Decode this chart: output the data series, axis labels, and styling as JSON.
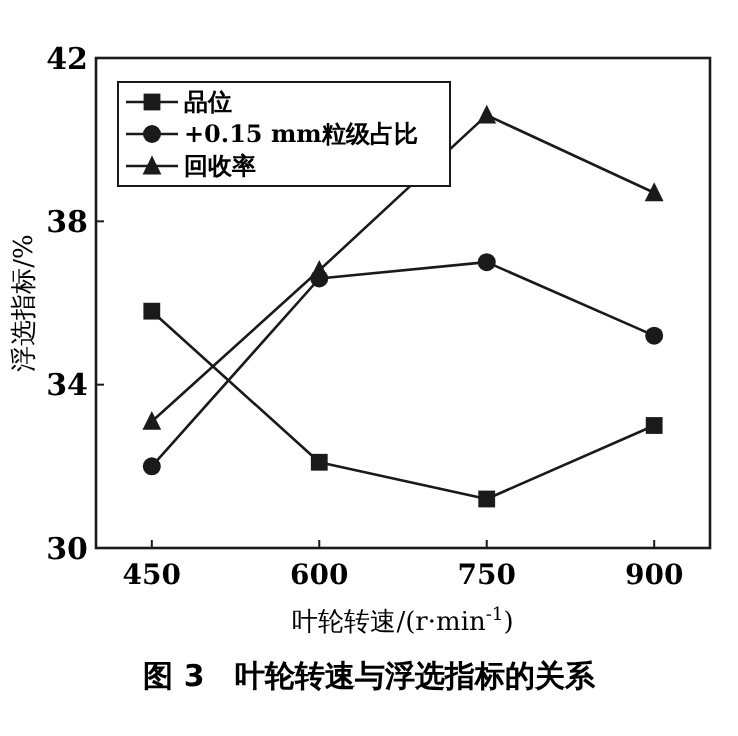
{
  "chart_data": {
    "type": "line",
    "title": "图 3　叶轮转速与浮选指标的关系",
    "xlabel": "叶轮转速/(r·min$^{-1}$)",
    "ylabel": "浮选指标/%",
    "x": [
      450,
      600,
      750,
      900
    ],
    "xlim": [
      400,
      950
    ],
    "xticks": [
      450,
      600,
      750,
      900
    ],
    "ylim": [
      30,
      42
    ],
    "yticks": [
      30,
      34,
      38,
      42
    ],
    "legend": "top left",
    "grid": false,
    "series": [
      {
        "name": "品位",
        "color": "#1a1a1a",
        "marker": "square",
        "values": [
          35.8,
          32.1,
          31.2,
          33.0
        ]
      },
      {
        "name": "+0.15 mm粒级占比",
        "color": "#1a1a1a",
        "marker": "circle",
        "values": [
          32.0,
          36.6,
          37.0,
          35.2
        ]
      },
      {
        "name": "回收率",
        "color": "#1a1a1a",
        "marker": "triangle",
        "values": [
          33.1,
          36.8,
          40.6,
          38.7
        ]
      }
    ]
  }
}
